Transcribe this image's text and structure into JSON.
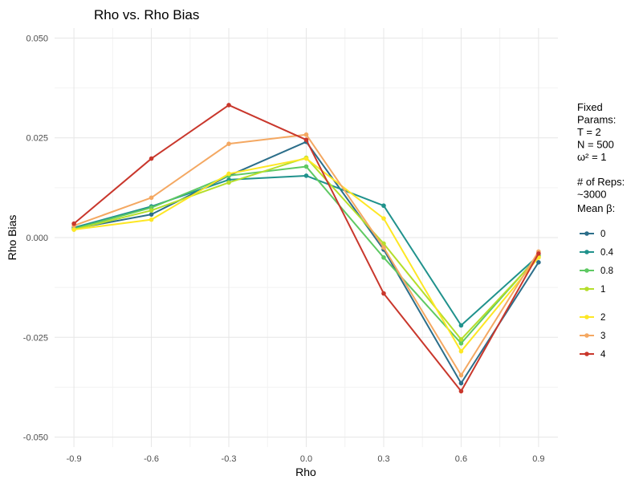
{
  "chart_data": {
    "type": "line",
    "title": "Rho vs. Rho Bias",
    "xlabel": "Rho",
    "ylabel": "Rho Bias",
    "x": [
      -0.9,
      -0.6,
      -0.3,
      0.0,
      0.3,
      0.6,
      0.9
    ],
    "x_tick_labels": [
      "-0.9",
      "-0.6",
      "-0.3",
      "0.0",
      "0.3",
      "0.6",
      "0.9"
    ],
    "xlim": [
      -0.975,
      0.975
    ],
    "ylim": [
      -0.0525,
      0.0525
    ],
    "y_ticks": [
      -0.05,
      -0.025,
      0.0,
      0.025,
      0.05
    ],
    "y_tick_labels": [
      "-0.050",
      "-0.025",
      "0.000",
      "0.025",
      "0.050"
    ],
    "grid": true,
    "legend_position": "right",
    "legend_notes": [
      "Fixed",
      "Params:",
      "T = 2",
      "N = 500",
      "ω² = 1",
      "",
      "# of Reps:",
      "~3000"
    ],
    "legend_title": "Mean β:",
    "series": [
      {
        "name": "0",
        "color": "#2c6e8a",
        "values": [
          0.0022,
          0.0058,
          0.0155,
          0.024,
          -0.003,
          -0.0365,
          -0.0062
        ]
      },
      {
        "name": "0.4",
        "color": "#20928c",
        "values": [
          0.0025,
          0.0078,
          0.0145,
          0.0155,
          0.008,
          -0.022,
          -0.0045
        ]
      },
      {
        "name": "0.8",
        "color": "#5ec962",
        "values": [
          0.0022,
          0.0075,
          0.0155,
          0.0178,
          -0.005,
          -0.0265,
          -0.0045
        ]
      },
      {
        "name": "1",
        "color": "#b5de2b",
        "values": [
          0.002,
          0.0068,
          0.0138,
          0.02,
          -0.0015,
          -0.0255,
          -0.0048
        ]
      },
      {
        "name": "2",
        "color": "#fde725",
        "values": [
          0.002,
          0.0045,
          0.016,
          0.0198,
          0.0048,
          -0.0285,
          -0.005
        ]
      },
      {
        "name": "3",
        "color": "#f4a862",
        "values": [
          0.003,
          0.01,
          0.0235,
          0.0258,
          -0.0025,
          -0.0345,
          -0.0035
        ]
      },
      {
        "name": "4",
        "color": "#c9372c",
        "values": [
          0.0035,
          0.0198,
          0.0332,
          0.0245,
          -0.014,
          -0.0385,
          -0.004
        ]
      }
    ]
  }
}
